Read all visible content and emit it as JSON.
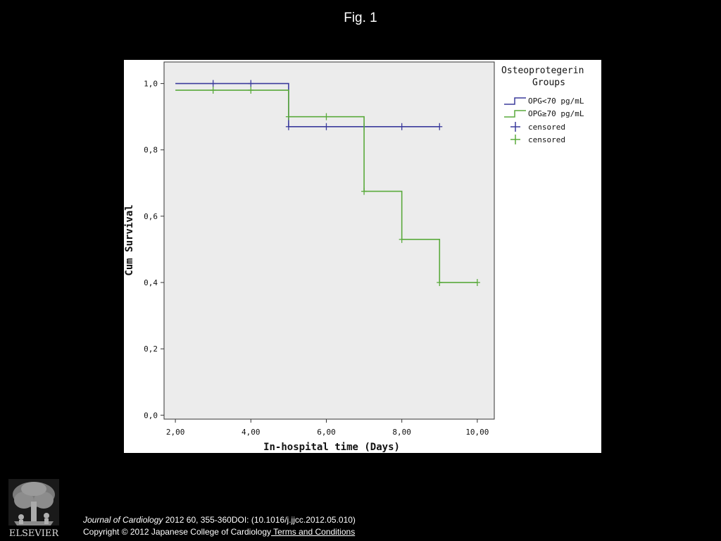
{
  "slide": {
    "title": "Fig. 1"
  },
  "citation": {
    "journal": "Journal of Cardiology",
    "details": " 2012 60, 355-360DOI: (10.1016/j.jjcc.2012.05.010)",
    "copyright": "Copyright © 2012 Japanese College of Cardiology",
    "link_label": " Terms and Conditions"
  },
  "logo": {
    "text": "ELSEVIER",
    "icon": "elsevier-tree-icon"
  },
  "chart_data": {
    "type": "line",
    "subtype": "kaplan-meier-step",
    "xlabel": "In-hospital time (Days)",
    "ylabel": "Cum Survival",
    "xlim": [
      1.7,
      10.45
    ],
    "ylim": [
      -0.012,
      1.065
    ],
    "xticks": [
      2,
      4,
      6,
      8,
      10
    ],
    "xtick_labels": [
      "2,00",
      "4,00",
      "6,00",
      "8,00",
      "10,00"
    ],
    "yticks": [
      0.0,
      0.2,
      0.4,
      0.6,
      0.8,
      1.0
    ],
    "ytick_labels": [
      "0,0",
      "0,2",
      "0,4",
      "0,6",
      "0,8",
      "1,0"
    ],
    "grid": false,
    "legend": {
      "title_lines": [
        "Osteoprotegerin",
        "Groups"
      ],
      "placement": "right",
      "entries": [
        "OPG<70 pg/mL",
        "OPG≥70 pg/mL",
        "censored",
        "censored"
      ]
    },
    "series": [
      {
        "name": "OPG<70 pg/mL",
        "color": "#3b3b9c",
        "steps": [
          {
            "x": 2,
            "y": 1.0
          },
          {
            "x": 5,
            "y": 0.87
          },
          {
            "x": 9,
            "y": 0.87
          }
        ],
        "censored": [
          {
            "x": 3,
            "y": 1.0
          },
          {
            "x": 4,
            "y": 1.0
          },
          {
            "x": 5,
            "y": 0.87
          },
          {
            "x": 6,
            "y": 0.87
          },
          {
            "x": 7,
            "y": 0.87
          },
          {
            "x": 8,
            "y": 0.87
          },
          {
            "x": 9,
            "y": 0.87
          }
        ]
      },
      {
        "name": "OPG≥70 pg/mL",
        "color": "#5aaa3c",
        "steps": [
          {
            "x": 2,
            "y": 0.98
          },
          {
            "x": 5,
            "y": 0.9
          },
          {
            "x": 7,
            "y": 0.675
          },
          {
            "x": 8,
            "y": 0.53
          },
          {
            "x": 9,
            "y": 0.4
          },
          {
            "x": 10,
            "y": 0.4
          }
        ],
        "censored": [
          {
            "x": 3,
            "y": 0.98
          },
          {
            "x": 4,
            "y": 0.98
          },
          {
            "x": 5,
            "y": 0.9
          },
          {
            "x": 6,
            "y": 0.9
          },
          {
            "x": 7,
            "y": 0.675
          },
          {
            "x": 8,
            "y": 0.53
          },
          {
            "x": 9,
            "y": 0.4
          },
          {
            "x": 10,
            "y": 0.4
          }
        ]
      }
    ]
  }
}
